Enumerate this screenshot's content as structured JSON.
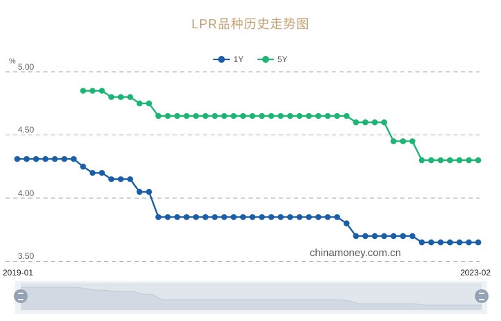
{
  "title": "LPR品种历史走势图",
  "legend": {
    "items": [
      {
        "label": "1Y",
        "color": "#1a5ea8"
      },
      {
        "label": "5Y",
        "color": "#1db574"
      }
    ]
  },
  "y_axis": {
    "unit": "%",
    "ticks": [
      "5.00",
      "4.50",
      "4.00",
      "3.50"
    ]
  },
  "x_axis": {
    "start": "2019-01",
    "end": "2023-02"
  },
  "watermark": "chinamoney.com.cn",
  "icons": {
    "datazoom_left_handle": "grip-lines-icon",
    "datazoom_right_handle": "grip-lines-icon"
  },
  "colors": {
    "title": "#c7a173",
    "grid": "#a6a6a6",
    "tick_text": "#666666",
    "axis_text": "#222222",
    "watermark": "#3f3f3f",
    "series_1y": "#1a5ea8",
    "series_5y": "#1db574",
    "slider_bg": "#e0e6ec",
    "slider_track": "#eef1f5",
    "slider_shadow_fill": "#d2d9e2",
    "slider_shadow_line": "#bfc9d6",
    "slider_handle": "#93a2b7"
  },
  "chart_data": {
    "type": "line",
    "title": "LPR品种历史走势图",
    "xlabel": "",
    "ylabel": "%",
    "ylim": [
      3.5,
      5.0
    ],
    "yticks": [
      5.0,
      4.5,
      4.0,
      3.5
    ],
    "grid": "horizontal-dashed",
    "legend_position": "top-center",
    "x_range_labels": [
      "2019-01",
      "2023-02"
    ],
    "x": [
      "2019-01",
      "2019-02",
      "2019-03",
      "2019-04",
      "2019-05",
      "2019-06",
      "2019-07",
      "2019-08",
      "2019-09",
      "2019-10",
      "2019-11",
      "2019-12",
      "2020-01",
      "2020-02",
      "2020-03",
      "2020-04",
      "2020-05",
      "2020-06",
      "2020-07",
      "2020-08",
      "2020-09",
      "2020-10",
      "2020-11",
      "2020-12",
      "2021-01",
      "2021-02",
      "2021-03",
      "2021-04",
      "2021-05",
      "2021-06",
      "2021-07",
      "2021-08",
      "2021-09",
      "2021-10",
      "2021-11",
      "2021-12",
      "2022-01",
      "2022-02",
      "2022-03",
      "2022-04",
      "2022-05",
      "2022-06",
      "2022-07",
      "2022-08",
      "2022-09",
      "2022-10",
      "2022-11",
      "2022-12",
      "2023-01",
      "2023-02"
    ],
    "series": [
      {
        "name": "1Y",
        "color": "#1a5ea8",
        "values": [
          4.31,
          4.31,
          4.31,
          4.31,
          4.31,
          4.31,
          4.31,
          4.25,
          4.2,
          4.2,
          4.15,
          4.15,
          4.15,
          4.05,
          4.05,
          3.85,
          3.85,
          3.85,
          3.85,
          3.85,
          3.85,
          3.85,
          3.85,
          3.85,
          3.85,
          3.85,
          3.85,
          3.85,
          3.85,
          3.85,
          3.85,
          3.85,
          3.85,
          3.85,
          3.85,
          3.8,
          3.7,
          3.7,
          3.7,
          3.7,
          3.7,
          3.7,
          3.7,
          3.65,
          3.65,
          3.65,
          3.65,
          3.65,
          3.65,
          3.65
        ]
      },
      {
        "name": "5Y",
        "color": "#1db574",
        "values": [
          null,
          null,
          null,
          null,
          null,
          null,
          null,
          4.85,
          4.85,
          4.85,
          4.8,
          4.8,
          4.8,
          4.75,
          4.75,
          4.65,
          4.65,
          4.65,
          4.65,
          4.65,
          4.65,
          4.65,
          4.65,
          4.65,
          4.65,
          4.65,
          4.65,
          4.65,
          4.65,
          4.65,
          4.65,
          4.65,
          4.65,
          4.65,
          4.65,
          4.65,
          4.6,
          4.6,
          4.6,
          4.6,
          4.45,
          4.45,
          4.45,
          4.3,
          4.3,
          4.3,
          4.3,
          4.3,
          4.3,
          4.3
        ]
      }
    ]
  }
}
